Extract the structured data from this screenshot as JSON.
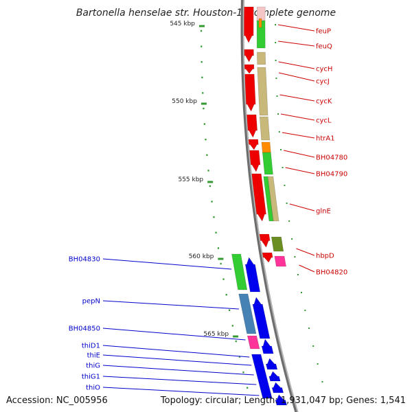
{
  "title": "Bartonella henselae str. Houston-1, complete genome",
  "accession": "Accession: NC_005956",
  "summary": "Topology: circular; Length: 1,931,047 bp; Genes: 1,541",
  "colors": {
    "backbone": "#888888",
    "tick": "#339933",
    "right_label": "#cc0000",
    "left_label": "#0000cc",
    "red": "#ee0000",
    "green": "#33cc33",
    "khaki": "#c8b87a",
    "orange": "#ff8c00",
    "olive": "#6b8e23",
    "pink": "#ff3399",
    "blue": "#0000ee",
    "steel": "#4682b4"
  },
  "ticks": [
    {
      "label": "545 kbp"
    },
    {
      "label": "550 kbp"
    },
    {
      "label": "555 kbp"
    },
    {
      "label": "560 kbp"
    },
    {
      "label": "565 kbp"
    }
  ],
  "right_genes": [
    {
      "label": "feuP"
    },
    {
      "label": "feuQ"
    },
    {
      "label": "cycH"
    },
    {
      "label": "cycJ"
    },
    {
      "label": "cycK"
    },
    {
      "label": "cycL"
    },
    {
      "label": "htrA1"
    },
    {
      "label": "BH04780"
    },
    {
      "label": "BH04790"
    },
    {
      "label": "glnE"
    },
    {
      "label": "hbpD"
    },
    {
      "label": "BH04820"
    }
  ],
  "left_genes": [
    {
      "label": "BH04830"
    },
    {
      "label": "pepN"
    },
    {
      "label": "BH04850"
    },
    {
      "label": "thiD1"
    },
    {
      "label": "thiE"
    },
    {
      "label": "thiG"
    },
    {
      "label": "thiG1"
    },
    {
      "label": "thiO"
    }
  ]
}
